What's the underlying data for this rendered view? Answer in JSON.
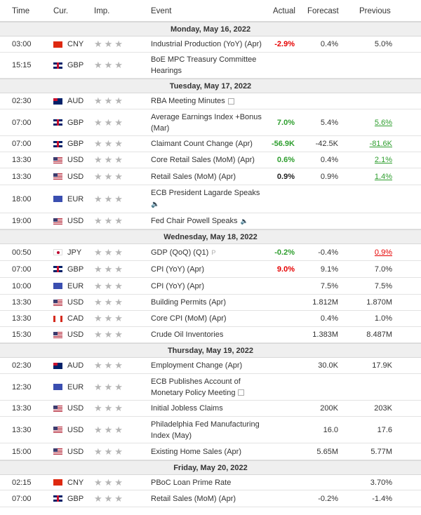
{
  "header": {
    "time": "Time",
    "cur": "Cur.",
    "imp": "Imp.",
    "event": "Event",
    "actual": "Actual",
    "forecast": "Forecast",
    "previous": "Previous"
  },
  "stars": "★★★",
  "groups": [
    {
      "day": "Monday, May 16, 2022",
      "rows": [
        {
          "time": "03:00",
          "flag": "cn",
          "cur": "CNY",
          "event": "Industrial Production (YoY) (Apr)",
          "actual": "-2.9%",
          "actual_color": "red",
          "forecast": "0.4%",
          "previous": "5.0%",
          "h": 23
        },
        {
          "time": "15:15",
          "flag": "gb",
          "cur": "GBP",
          "event": "BoE MPC Treasury Committee Hearings",
          "actual": "",
          "forecast": "",
          "previous": "",
          "h": 37
        }
      ]
    },
    {
      "day": "Tuesday, May 17, 2022",
      "rows": [
        {
          "time": "02:30",
          "flag": "au",
          "cur": "AUD",
          "event": "RBA Meeting Minutes",
          "icon": "doc",
          "actual": "",
          "forecast": "",
          "previous": "",
          "h": 23
        },
        {
          "time": "07:00",
          "flag": "gb",
          "cur": "GBP",
          "event": "Average Earnings Index +Bonus (Mar)",
          "actual": "7.0%",
          "actual_color": "green",
          "forecast": "5.4%",
          "previous": "5.6%",
          "previous_color": "green",
          "h": 38
        },
        {
          "time": "07:00",
          "flag": "gb",
          "cur": "GBP",
          "event": "Claimant Count Change (Apr)",
          "actual": "-56.9K",
          "actual_color": "green",
          "forecast": "-42.5K",
          "previous": "-81.6K",
          "previous_color": "green",
          "h": 23
        },
        {
          "time": "13:30",
          "flag": "us",
          "cur": "USD",
          "event": "Core Retail Sales (MoM) (Apr)",
          "actual": "0.6%",
          "actual_color": "green",
          "forecast": "0.4%",
          "previous": "2.1%",
          "previous_color": "green",
          "h": 23
        },
        {
          "time": "13:30",
          "flag": "us",
          "cur": "USD",
          "event": "Retail Sales (MoM) (Apr)",
          "actual": "0.9%",
          "actual_color": "black",
          "forecast": "0.9%",
          "previous": "1.4%",
          "previous_color": "green",
          "h": 24
        },
        {
          "time": "18:00",
          "flag": "eu",
          "cur": "EUR",
          "event": "ECB President Lagarde Speaks",
          "icon": "speaker",
          "actual": "",
          "forecast": "",
          "previous": "",
          "h": 40
        },
        {
          "time": "19:00",
          "flag": "us",
          "cur": "USD",
          "event": "Fed Chair Powell Speaks",
          "icon": "speaker-inline",
          "actual": "",
          "forecast": "",
          "previous": "",
          "h": 23
        }
      ]
    },
    {
      "day": "Wednesday, May 18, 2022",
      "rows": [
        {
          "time": "00:50",
          "flag": "jp",
          "cur": "JPY",
          "event": "GDP (QoQ) (Q1)",
          "icon": "p",
          "actual": "-0.2%",
          "actual_color": "green",
          "forecast": "-0.4%",
          "previous": "0.9%",
          "previous_color": "red",
          "h": 24
        },
        {
          "time": "07:00",
          "flag": "gb",
          "cur": "GBP",
          "event": "CPI (YoY) (Apr)",
          "actual": "9.0%",
          "actual_color": "red",
          "forecast": "9.1%",
          "previous": "7.0%",
          "h": 24
        },
        {
          "time": "10:00",
          "flag": "eu",
          "cur": "EUR",
          "event": "CPI (YoY) (Apr)",
          "actual": "",
          "forecast": "7.5%",
          "previous": "7.5%",
          "h": 24
        },
        {
          "time": "13:30",
          "flag": "us",
          "cur": "USD",
          "event": "Building Permits (Apr)",
          "actual": "",
          "forecast": "1.812M",
          "previous": "1.870M",
          "h": 23
        },
        {
          "time": "13:30",
          "flag": "ca",
          "cur": "CAD",
          "event": "Core CPI (MoM) (Apr)",
          "actual": "",
          "forecast": "0.4%",
          "previous": "1.0%",
          "h": 23
        },
        {
          "time": "15:30",
          "flag": "us",
          "cur": "USD",
          "event": "Crude Oil Inventories",
          "actual": "",
          "forecast": "1.383M",
          "previous": "8.487M",
          "h": 23
        }
      ]
    },
    {
      "day": "Thursday, May 19, 2022",
      "rows": [
        {
          "time": "02:30",
          "flag": "au",
          "cur": "AUD",
          "event": "Employment Change (Apr)",
          "actual": "",
          "forecast": "30.0K",
          "previous": "17.9K",
          "h": 23
        },
        {
          "time": "12:30",
          "flag": "eu",
          "cur": "EUR",
          "event": "ECB Publishes Account of Monetary Policy Meeting",
          "icon": "doc",
          "actual": "",
          "forecast": "",
          "previous": "",
          "h": 38
        },
        {
          "time": "13:30",
          "flag": "us",
          "cur": "USD",
          "event": "Initial Jobless Claims",
          "actual": "",
          "forecast": "200K",
          "previous": "203K",
          "h": 23
        },
        {
          "time": "13:30",
          "flag": "us",
          "cur": "USD",
          "event": "Philadelphia Fed Manufacturing Index (May)",
          "actual": "",
          "forecast": "16.0",
          "previous": "17.6",
          "h": 38
        },
        {
          "time": "15:00",
          "flag": "us",
          "cur": "USD",
          "event": "Existing Home Sales (Apr)",
          "actual": "",
          "forecast": "5.65M",
          "previous": "5.77M",
          "h": 24
        }
      ]
    },
    {
      "day": "Friday, May 20, 2022",
      "rows": [
        {
          "time": "02:15",
          "flag": "cn",
          "cur": "CNY",
          "event": "PBoC Loan Prime Rate",
          "actual": "",
          "forecast": "",
          "previous": "3.70%",
          "h": 22
        },
        {
          "time": "07:00",
          "flag": "gb",
          "cur": "GBP",
          "event": "Retail Sales (MoM) (Apr)",
          "actual": "",
          "forecast": "-0.2%",
          "previous": "-1.4%",
          "h": 24
        }
      ]
    }
  ]
}
